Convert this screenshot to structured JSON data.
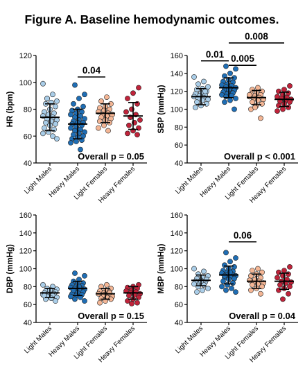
{
  "title": "Figure A. Baseline hemodynamic outcomes.",
  "colors": {
    "Light Males": "#a9cde8",
    "Heavy Males": "#1f6eb5",
    "Light Females": "#f4b695",
    "Heavy Females": "#c0233a"
  },
  "chart_data": [
    {
      "type": "scatter",
      "ylabel": "HR (bpm)",
      "ylim": [
        40,
        120
      ],
      "yticks": [
        40,
        60,
        80,
        100,
        120
      ],
      "categories": [
        "Light Males",
        "Heavy Males",
        "Light Females",
        "Heavy Females"
      ],
      "overall": "Overall p = 0.05",
      "stats": [
        {
          "mean": 74,
          "sd": 10
        },
        {
          "mean": 69,
          "sd": 11
        },
        {
          "mean": 77,
          "sd": 7
        },
        {
          "mean": 75,
          "sd": 10
        }
      ],
      "points": [
        [
          99,
          91,
          88,
          86,
          85,
          84,
          82,
          80,
          78,
          77,
          76,
          75,
          74,
          73,
          72,
          71,
          70,
          69,
          68,
          66,
          65,
          63,
          62,
          60,
          88,
          58
        ],
        [
          98,
          91,
          88,
          84,
          82,
          80,
          79,
          78,
          77,
          76,
          75,
          74,
          73,
          72,
          71,
          70,
          70,
          69,
          68,
          67,
          66,
          65,
          64,
          63,
          62,
          61,
          60,
          59,
          58,
          57,
          56,
          55,
          50
        ],
        [
          89,
          86,
          84,
          82,
          81,
          80,
          79,
          78,
          77,
          76,
          76,
          75,
          74,
          73,
          72,
          71,
          70,
          68,
          66,
          64
        ],
        [
          96,
          92,
          88,
          84,
          80,
          78,
          76,
          74,
          72,
          70,
          68,
          66,
          64,
          62,
          61
        ]
      ],
      "brackets": [
        {
          "from": 1,
          "to": 2,
          "y": 104,
          "label": "0.04"
        }
      ]
    },
    {
      "type": "scatter",
      "ylabel": "SBP (mmHg)",
      "ylim": [
        40,
        160
      ],
      "yticks": [
        40,
        60,
        80,
        100,
        120,
        140,
        160
      ],
      "categories": [
        "Light Males",
        "Heavy Males",
        "Light Females",
        "Heavy Females"
      ],
      "overall": "Overall p < 0.001",
      "stats": [
        {
          "mean": 114,
          "sd": 9
        },
        {
          "mean": 124,
          "sd": 11
        },
        {
          "mean": 113,
          "sd": 8
        },
        {
          "mean": 111,
          "sd": 8
        }
      ],
      "points": [
        [
          136,
          131,
          128,
          125,
          123,
          122,
          120,
          118,
          117,
          116,
          115,
          114,
          113,
          112,
          111,
          110,
          108,
          106,
          104,
          102,
          120
        ],
        [
          148,
          145,
          140,
          137,
          135,
          133,
          131,
          130,
          128,
          127,
          126,
          125,
          124,
          123,
          122,
          121,
          120,
          119,
          118,
          117,
          116,
          115,
          114,
          112,
          110,
          108,
          100,
          122
        ],
        [
          124,
          122,
          120,
          118,
          117,
          116,
          115,
          114,
          113,
          112,
          111,
          110,
          108,
          106,
          104,
          100,
          90,
          102,
          116
        ],
        [
          126,
          122,
          120,
          118,
          116,
          114,
          113,
          112,
          111,
          110,
          109,
          108,
          106,
          104,
          102,
          100,
          98
        ]
      ],
      "brackets": [
        {
          "from": 1,
          "to": 3,
          "y": 174,
          "label": "0.008"
        },
        {
          "from": 0,
          "to": 1,
          "y": 154,
          "label": "0.01"
        },
        {
          "from": 1,
          "to": 2,
          "y": 149,
          "label": "0.005"
        }
      ]
    },
    {
      "type": "scatter",
      "ylabel": "DBP (mmHg)",
      "ylim": [
        40,
        160
      ],
      "yticks": [
        40,
        60,
        80,
        100,
        120,
        140,
        160
      ],
      "categories": [
        "Light Males",
        "Heavy Males",
        "Light Females",
        "Heavy Females"
      ],
      "overall": "Overall p = 0.15",
      "stats": [
        {
          "mean": 73,
          "sd": 5
        },
        {
          "mean": 78,
          "sd": 8
        },
        {
          "mean": 72,
          "sd": 6
        },
        {
          "mean": 73,
          "sd": 7
        }
      ],
      "points": [
        [
          82,
          80,
          78,
          77,
          76,
          75,
          74,
          74,
          73,
          72,
          72,
          71,
          70,
          69,
          68,
          67,
          66,
          64,
          76,
          70
        ],
        [
          95,
          92,
          88,
          86,
          84,
          83,
          82,
          81,
          80,
          79,
          78,
          78,
          77,
          76,
          75,
          74,
          73,
          72,
          71,
          70,
          69,
          68,
          66,
          64,
          80,
          76
        ],
        [
          82,
          80,
          78,
          76,
          75,
          74,
          73,
          72,
          71,
          70,
          69,
          68,
          67,
          66,
          64,
          62,
          73,
          71
        ],
        [
          82,
          80,
          79,
          78,
          76,
          75,
          74,
          73,
          72,
          71,
          70,
          68,
          66,
          64,
          62,
          61
        ]
      ],
      "brackets": []
    },
    {
      "type": "scatter",
      "ylabel": "MBP (mmHg)",
      "ylim": [
        40,
        160
      ],
      "yticks": [
        40,
        60,
        80,
        100,
        120,
        140,
        160
      ],
      "categories": [
        "Light Males",
        "Heavy Males",
        "Light Females",
        "Heavy Females"
      ],
      "overall": "Overall p = 0.04",
      "stats": [
        {
          "mean": 87,
          "sd": 6
        },
        {
          "mean": 93,
          "sd": 10
        },
        {
          "mean": 86,
          "sd": 8
        },
        {
          "mean": 86,
          "sd": 9
        }
      ],
      "points": [
        [
          100,
          97,
          94,
          92,
          90,
          89,
          88,
          87,
          86,
          85,
          84,
          83,
          82,
          80,
          78,
          76,
          74,
          88,
          86
        ],
        [
          118,
          112,
          108,
          104,
          102,
          100,
          98,
          97,
          96,
          95,
          94,
          93,
          92,
          91,
          90,
          89,
          88,
          86,
          84,
          82,
          80,
          78,
          76,
          74,
          96,
          92
        ],
        [
          100,
          98,
          96,
          94,
          92,
          90,
          88,
          87,
          86,
          85,
          84,
          83,
          82,
          80,
          78,
          76,
          72,
          88
        ],
        [
          102,
          98,
          96,
          94,
          92,
          90,
          88,
          86,
          85,
          84,
          82,
          80,
          78,
          76,
          72,
          66
        ]
      ],
      "brackets": [
        {
          "from": 1,
          "to": 2,
          "y": 130,
          "label": "0.06"
        }
      ]
    }
  ]
}
